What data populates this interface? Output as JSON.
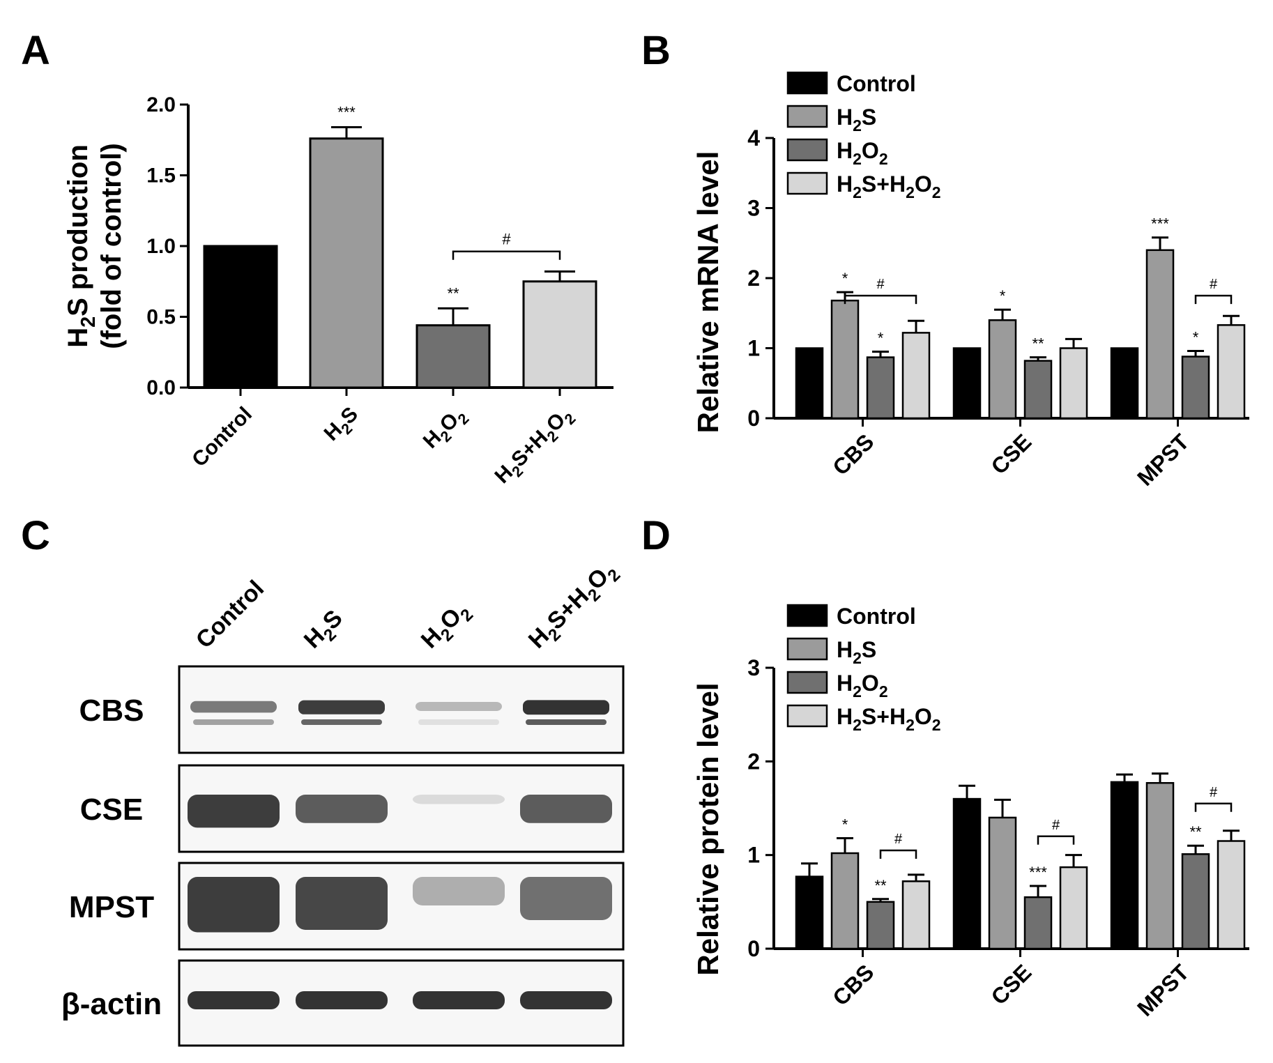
{
  "colors": {
    "control": "#000000",
    "h2s": "#9b9b9b",
    "h2o2": "#707070",
    "combo": "#d6d6d6",
    "axis": "#000000"
  },
  "panel_labels": {
    "a": "A",
    "b": "B",
    "c": "C",
    "d": "D"
  },
  "legend": [
    {
      "main": "Control",
      "parts": [
        {
          "t": "Control",
          "sub": false
        }
      ]
    },
    {
      "main": "H2S",
      "parts": [
        {
          "t": "H",
          "sub": false
        },
        {
          "t": "2",
          "sub": true
        },
        {
          "t": "S",
          "sub": false
        }
      ]
    },
    {
      "main": "H2O2",
      "parts": [
        {
          "t": "H",
          "sub": false
        },
        {
          "t": "2",
          "sub": true
        },
        {
          "t": "O",
          "sub": false
        },
        {
          "t": "2",
          "sub": true
        }
      ]
    },
    {
      "main": "H2S+H2O2",
      "parts": [
        {
          "t": "H",
          "sub": false
        },
        {
          "t": "2",
          "sub": true
        },
        {
          "t": "S+H",
          "sub": false
        },
        {
          "t": "2",
          "sub": true
        },
        {
          "t": "O",
          "sub": false
        },
        {
          "t": "2",
          "sub": true
        }
      ]
    }
  ],
  "chart_data": [
    {
      "panel": "A",
      "type": "bar",
      "ylabel_line1_parts": [
        {
          "t": "H",
          "sub": false
        },
        {
          "t": "2",
          "sub": true
        },
        {
          "t": "S production",
          "sub": false
        }
      ],
      "ylabel_line2": "(fold of control)",
      "ylim": [
        0,
        2.0
      ],
      "yticks": [
        "0.0",
        "0.5",
        "1.0",
        "1.5",
        "2.0"
      ],
      "categories": [
        "Control",
        "H2S",
        "H2O2",
        "H2S+H2O2"
      ],
      "category_parts": [
        [
          {
            "t": "Control",
            "sub": false
          }
        ],
        [
          {
            "t": "H",
            "sub": false
          },
          {
            "t": "2",
            "sub": true
          },
          {
            "t": "S",
            "sub": false
          }
        ],
        [
          {
            "t": "H",
            "sub": false
          },
          {
            "t": "2",
            "sub": true
          },
          {
            "t": "O",
            "sub": false
          },
          {
            "t": "2",
            "sub": true
          }
        ],
        [
          {
            "t": "H",
            "sub": false
          },
          {
            "t": "2",
            "sub": true
          },
          {
            "t": "S+H",
            "sub": false
          },
          {
            "t": "2",
            "sub": true
          },
          {
            "t": "O",
            "sub": false
          },
          {
            "t": "2",
            "sub": true
          }
        ]
      ],
      "values": [
        1.0,
        1.76,
        0.44,
        0.75
      ],
      "errors": [
        0,
        0.08,
        0.12,
        0.07
      ],
      "stars": [
        "",
        "***",
        "**",
        ""
      ],
      "brackets": [
        {
          "from": 2,
          "to": 3,
          "y": 1.1,
          "label": "#"
        }
      ]
    },
    {
      "panel": "B",
      "type": "bar",
      "ylabel": "Relative mRNA level",
      "ylim": [
        0,
        4
      ],
      "yticks": [
        "0",
        "1",
        "2",
        "3",
        "4"
      ],
      "categories": [
        "CBS",
        "CSE",
        "MPST"
      ],
      "series": [
        {
          "name": "Control",
          "values": [
            1.0,
            1.0,
            1.0
          ],
          "errors": [
            0,
            0,
            0
          ],
          "stars": [
            "",
            "",
            ""
          ]
        },
        {
          "name": "H2S",
          "values": [
            1.68,
            1.4,
            2.4
          ],
          "errors": [
            0.12,
            0.15,
            0.18
          ],
          "stars": [
            "*",
            "*",
            "***"
          ]
        },
        {
          "name": "H2O2",
          "values": [
            0.87,
            0.82,
            0.88
          ],
          "errors": [
            0.08,
            0.05,
            0.08
          ],
          "stars": [
            "*",
            "**",
            "*"
          ]
        },
        {
          "name": "H2S+H2O2",
          "values": [
            1.22,
            1.0,
            1.33
          ],
          "errors": [
            0.17,
            0.13,
            0.13
          ],
          "stars": [
            "",
            "",
            ""
          ]
        }
      ],
      "brackets": [
        {
          "group": 0,
          "from": 1,
          "to": 3,
          "y": 1.75,
          "label": "#"
        },
        {
          "group": 2,
          "from": 2,
          "to": 3,
          "y": 1.75,
          "label": "#"
        }
      ]
    },
    {
      "panel": "D",
      "type": "bar",
      "ylabel": "Relative protein level",
      "ylim": [
        0,
        3
      ],
      "yticks": [
        "0",
        "1",
        "2",
        "3"
      ],
      "categories": [
        "CBS",
        "CSE",
        "MPST"
      ],
      "series": [
        {
          "name": "Control",
          "values": [
            0.77,
            1.6,
            1.78
          ],
          "errors": [
            0.14,
            0.14,
            0.08
          ],
          "stars": [
            "",
            "",
            ""
          ]
        },
        {
          "name": "H2S",
          "values": [
            1.02,
            1.4,
            1.77
          ],
          "errors": [
            0.16,
            0.19,
            0.1
          ],
          "stars": [
            "*",
            "",
            ""
          ]
        },
        {
          "name": "H2O2",
          "values": [
            0.5,
            0.55,
            1.01
          ],
          "errors": [
            0.03,
            0.12,
            0.09
          ],
          "stars": [
            "**",
            "***",
            "**"
          ]
        },
        {
          "name": "H2S+H2O2",
          "values": [
            0.72,
            0.87,
            1.15
          ],
          "errors": [
            0.07,
            0.13,
            0.11
          ],
          "stars": [
            "",
            "",
            ""
          ]
        }
      ],
      "brackets": [
        {
          "group": 0,
          "from": 2,
          "to": 3,
          "y": 1.05,
          "label": "#"
        },
        {
          "group": 1,
          "from": 2,
          "to": 3,
          "y": 1.2,
          "label": "#"
        },
        {
          "group": 2,
          "from": 2,
          "to": 3,
          "y": 1.55,
          "label": "#"
        }
      ]
    }
  ],
  "blot": {
    "lanes": [
      [
        {
          "t": "Control",
          "sub": false
        }
      ],
      [
        {
          "t": "H",
          "sub": false
        },
        {
          "t": "2",
          "sub": true
        },
        {
          "t": "S",
          "sub": false
        }
      ],
      [
        {
          "t": "H",
          "sub": false
        },
        {
          "t": "2",
          "sub": true
        },
        {
          "t": "O",
          "sub": false
        },
        {
          "t": "2",
          "sub": true
        }
      ],
      [
        {
          "t": "H",
          "sub": false
        },
        {
          "t": "2",
          "sub": true
        },
        {
          "t": "S+H",
          "sub": false
        },
        {
          "t": "2",
          "sub": true
        },
        {
          "t": "O",
          "sub": false
        },
        {
          "t": "2",
          "sub": true
        }
      ]
    ],
    "lane_names": [
      "Control",
      "H2S",
      "H2O2",
      "H2S+H2O2"
    ],
    "rows": [
      {
        "label": "CBS",
        "intensity": [
          0.55,
          0.85,
          0.25,
          0.9
        ]
      },
      {
        "label": "CSE",
        "intensity": [
          0.85,
          0.7,
          0.08,
          0.7
        ]
      },
      {
        "label": "MPST",
        "intensity": [
          0.85,
          0.8,
          0.3,
          0.6
        ]
      },
      {
        "label": "β-actin",
        "intensity": [
          0.9,
          0.9,
          0.9,
          0.9
        ]
      }
    ]
  }
}
